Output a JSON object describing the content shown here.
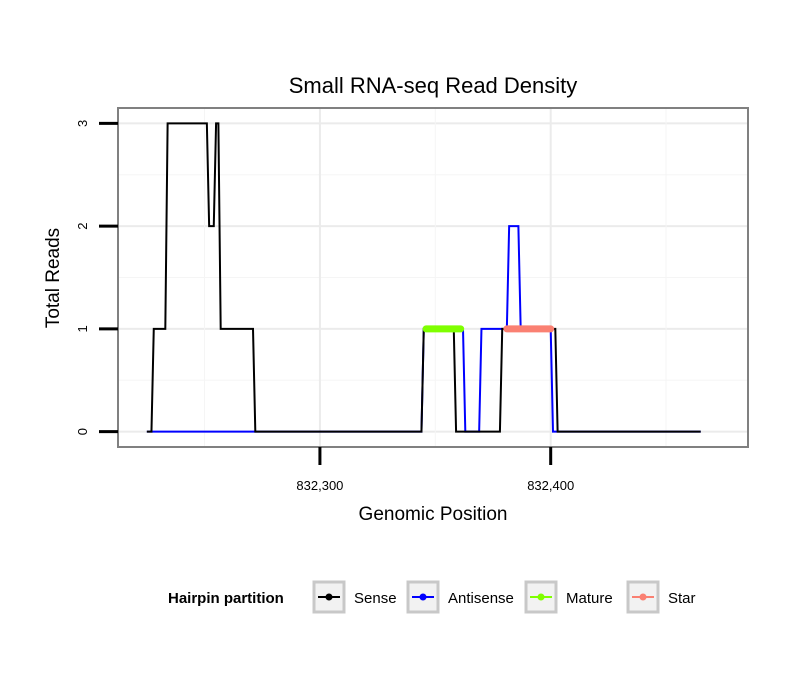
{
  "chart_data": {
    "type": "line",
    "title": "Small RNA-seq Read Density",
    "xlabel": "Genomic Position",
    "ylabel": "Total Reads",
    "xlim": [
      832212.5,
      832485.5
    ],
    "ylim": [
      -0.15,
      3.15
    ],
    "x_ticks": [
      {
        "value": 832300,
        "label": "832,300"
      },
      {
        "value": 832400,
        "label": "832,400"
      }
    ],
    "y_ticks": [
      {
        "value": 0,
        "label": "0"
      },
      {
        "value": 1,
        "label": "1"
      },
      {
        "value": 2,
        "label": "2"
      },
      {
        "value": 3,
        "label": "3"
      }
    ],
    "legend": {
      "title": "Hairpin partition",
      "placement": "bottom",
      "entries": [
        {
          "name": "Sense",
          "color": "#000000"
        },
        {
          "name": "Antisense",
          "color": "#0000ff"
        },
        {
          "name": "Mature",
          "color": "#7fff00"
        },
        {
          "name": "Star",
          "color": "#fa8072"
        }
      ]
    },
    "series": [
      {
        "name": "Antisense",
        "color": "#0000ff",
        "x": [
          832225,
          832268,
          832344,
          832345,
          832361,
          832362,
          832363,
          832369,
          832370,
          832381,
          832382,
          832386,
          832387,
          832400,
          832401,
          832465
        ],
        "y": [
          0,
          0,
          0,
          1,
          1,
          1,
          0,
          0,
          1,
          1,
          2,
          2,
          1,
          1,
          0,
          0
        ]
      },
      {
        "name": "Sense",
        "color": "#000000",
        "x": [
          832225,
          832227,
          832228,
          832233,
          832234,
          832251,
          832252,
          832254,
          832255,
          832256,
          832257,
          832271,
          832272,
          832344,
          832345,
          832358,
          832359,
          832378,
          832379,
          832402,
          832403,
          832465
        ],
        "y": [
          0,
          0,
          1,
          1,
          3,
          3,
          2,
          2,
          3,
          3,
          1,
          1,
          0,
          0,
          1,
          1,
          0,
          0,
          1,
          1,
          0,
          0
        ]
      },
      {
        "name": "Mature",
        "color": "#7fff00",
        "x": [
          832346,
          832361
        ],
        "y": [
          1,
          1
        ]
      },
      {
        "name": "Star",
        "color": "#fa8072",
        "x": [
          832381,
          832400
        ],
        "y": [
          1,
          1
        ]
      }
    ]
  }
}
